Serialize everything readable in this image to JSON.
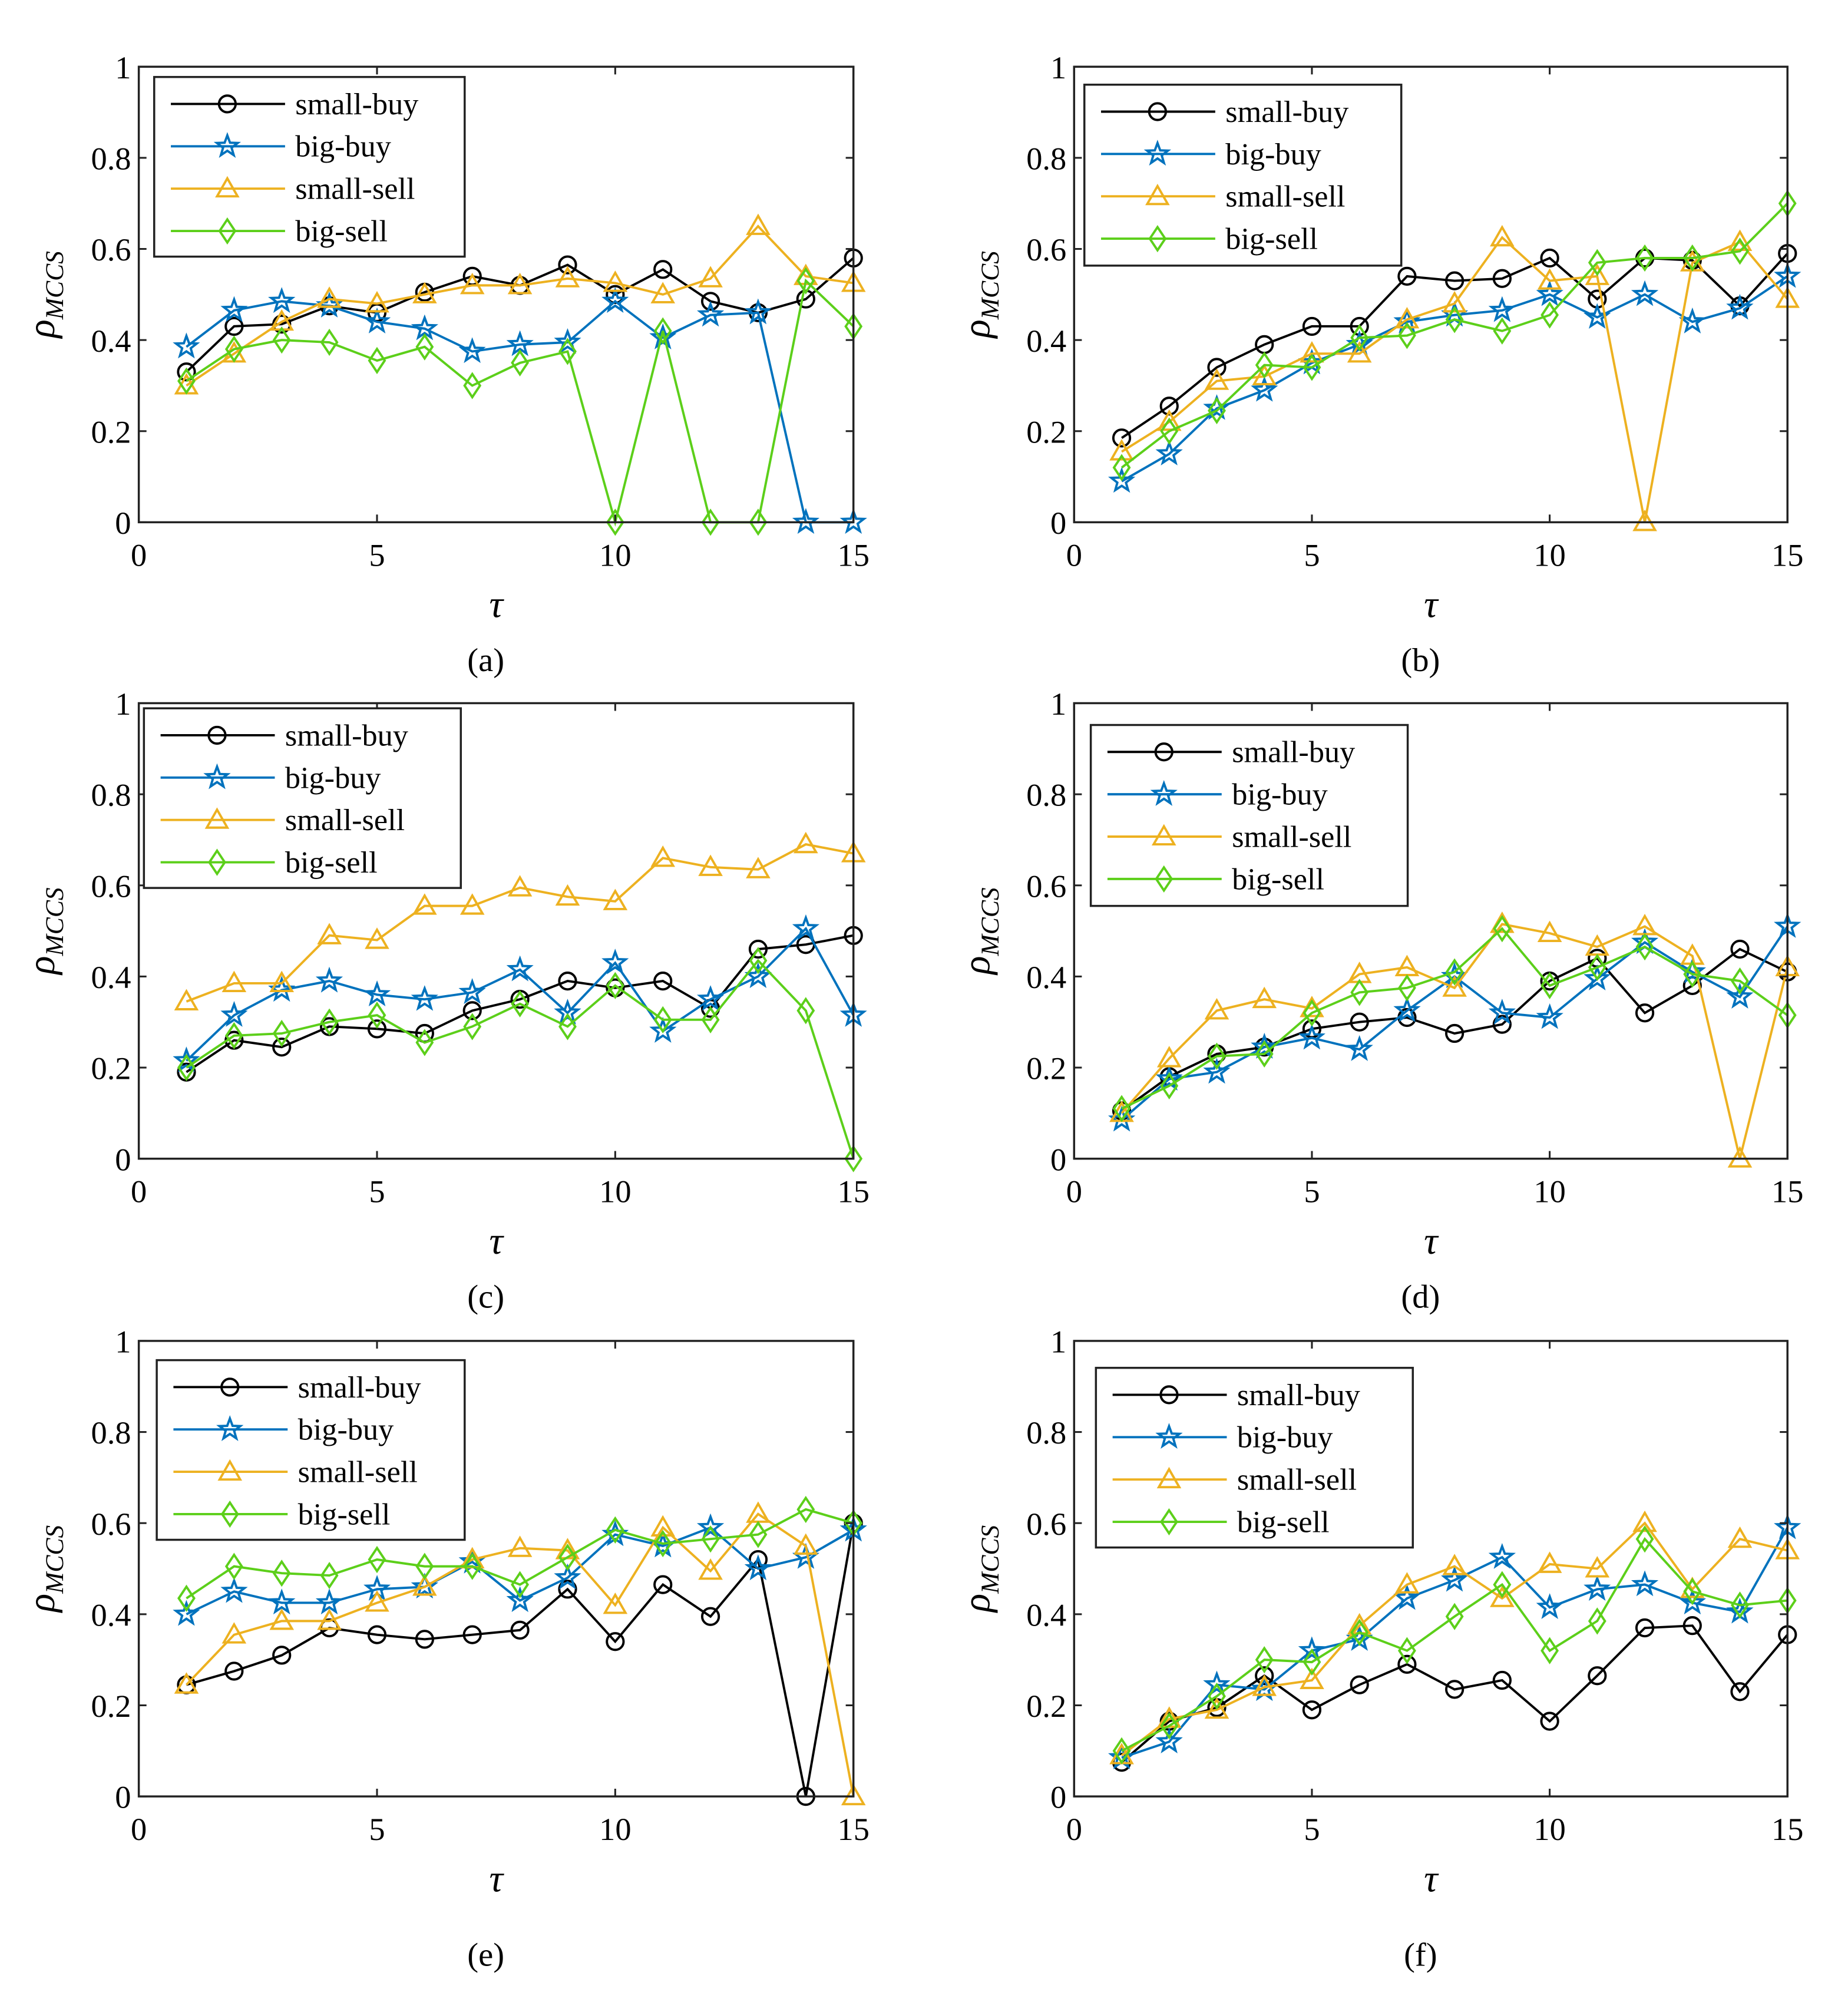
{
  "chart_data": [
    {
      "type": "line",
      "panel_label": "(a)",
      "xlabel": "τ",
      "ylabel": "ρ",
      "ylabel_sub": "MCCS",
      "xlim": [
        0,
        15
      ],
      "ylim": [
        0,
        1
      ],
      "xticks": [
        0,
        5,
        10,
        15
      ],
      "yticks": [
        0,
        0.2,
        0.4,
        0.6,
        0.8,
        1
      ],
      "legend": "top-left",
      "x": [
        1,
        2,
        3,
        4,
        5,
        6,
        7,
        8,
        9,
        10,
        11,
        12,
        13,
        14,
        15
      ],
      "series": [
        {
          "name": "small-buy",
          "color": "#000000",
          "marker": "circle",
          "values": [
            0.33,
            0.43,
            0.435,
            0.475,
            0.46,
            0.505,
            0.54,
            0.52,
            0.565,
            0.5,
            0.555,
            0.485,
            0.46,
            0.49,
            0.58
          ]
        },
        {
          "name": "big-buy",
          "color": "#0072BD",
          "marker": "star",
          "values": [
            0.385,
            0.465,
            0.485,
            0.475,
            0.44,
            0.425,
            0.375,
            0.39,
            0.395,
            0.485,
            0.405,
            0.455,
            0.46,
            0,
            0
          ]
        },
        {
          "name": "small-sell",
          "color": "#EDB120",
          "marker": "triangle",
          "values": [
            0.3,
            0.37,
            0.44,
            0.49,
            0.48,
            0.5,
            0.52,
            0.52,
            0.535,
            0.525,
            0.5,
            0.535,
            0.65,
            0.54,
            0.525
          ]
        },
        {
          "name": "big-sell",
          "color": "#5CCF1A",
          "marker": "diamond",
          "values": [
            0.31,
            0.38,
            0.4,
            0.395,
            0.355,
            0.385,
            0.3,
            0.35,
            0.375,
            0,
            0.42,
            0,
            0,
            0.53,
            0.43
          ]
        }
      ]
    },
    {
      "type": "line",
      "panel_label": "(b)",
      "xlabel": "τ",
      "ylabel": "ρ",
      "ylabel_sub": "MCCS",
      "xlim": [
        0,
        15
      ],
      "ylim": [
        0,
        1
      ],
      "xticks": [
        0,
        5,
        10,
        15
      ],
      "yticks": [
        0,
        0.2,
        0.4,
        0.6,
        0.8,
        1
      ],
      "legend": "top-left",
      "x": [
        1,
        2,
        3,
        4,
        5,
        6,
        7,
        8,
        9,
        10,
        11,
        12,
        13,
        14,
        15
      ],
      "series": [
        {
          "name": "small-buy",
          "color": "#000000",
          "marker": "circle",
          "values": [
            0.185,
            0.255,
            0.34,
            0.39,
            0.43,
            0.43,
            0.54,
            0.53,
            0.535,
            0.58,
            0.49,
            0.58,
            0.575,
            0.475,
            0.59
          ]
        },
        {
          "name": "big-buy",
          "color": "#0072BD",
          "marker": "star",
          "values": [
            0.09,
            0.15,
            0.25,
            0.29,
            0.35,
            0.39,
            0.44,
            0.455,
            0.465,
            0.5,
            0.45,
            0.5,
            0.44,
            0.47,
            0.54
          ]
        },
        {
          "name": "small-sell",
          "color": "#EDB120",
          "marker": "triangle",
          "values": [
            0.155,
            0.22,
            0.31,
            0.32,
            0.37,
            0.37,
            0.445,
            0.48,
            0.625,
            0.53,
            0.54,
            0,
            0.57,
            0.615,
            0.49
          ]
        },
        {
          "name": "big-sell",
          "color": "#5CCF1A",
          "marker": "diamond",
          "values": [
            0.12,
            0.2,
            0.245,
            0.345,
            0.34,
            0.405,
            0.41,
            0.445,
            0.42,
            0.455,
            0.57,
            0.58,
            0.58,
            0.595,
            0.7
          ]
        }
      ]
    },
    {
      "type": "line",
      "panel_label": "(c)",
      "xlabel": "τ",
      "ylabel": "ρ",
      "ylabel_sub": "MCCS",
      "xlim": [
        0,
        15
      ],
      "ylim": [
        0,
        1
      ],
      "xticks": [
        0,
        5,
        10,
        15
      ],
      "yticks": [
        0,
        0.2,
        0.4,
        0.6,
        0.8,
        1
      ],
      "legend": "top-left",
      "x": [
        1,
        2,
        3,
        4,
        5,
        6,
        7,
        8,
        9,
        10,
        11,
        12,
        13,
        14,
        15
      ],
      "series": [
        {
          "name": "small-buy",
          "color": "#000000",
          "marker": "circle",
          "values": [
            0.19,
            0.26,
            0.245,
            0.29,
            0.285,
            0.275,
            0.325,
            0.35,
            0.39,
            0.375,
            0.39,
            0.33,
            0.46,
            0.47,
            0.49
          ]
        },
        {
          "name": "big-buy",
          "color": "#0072BD",
          "marker": "star",
          "values": [
            0.215,
            0.315,
            0.37,
            0.39,
            0.36,
            0.35,
            0.365,
            0.415,
            0.32,
            0.43,
            0.28,
            0.35,
            0.4,
            0.505,
            0.315
          ]
        },
        {
          "name": "small-sell",
          "color": "#EDB120",
          "marker": "triangle",
          "values": [
            0.345,
            0.385,
            0.385,
            0.49,
            0.48,
            0.555,
            0.555,
            0.595,
            0.575,
            0.565,
            0.66,
            0.64,
            0.635,
            0.69,
            0.67
          ]
        },
        {
          "name": "big-sell",
          "color": "#5CCF1A",
          "marker": "diamond",
          "values": [
            0.2,
            0.27,
            0.275,
            0.3,
            0.315,
            0.255,
            0.29,
            0.34,
            0.29,
            0.38,
            0.305,
            0.305,
            0.435,
            0.325,
            0
          ]
        }
      ]
    },
    {
      "type": "line",
      "panel_label": "(d)",
      "xlabel": "τ",
      "ylabel": "ρ",
      "ylabel_sub": "MCCS",
      "xlim": [
        0,
        15
      ],
      "ylim": [
        0,
        1
      ],
      "xticks": [
        0,
        5,
        10,
        15
      ],
      "yticks": [
        0,
        0.2,
        0.4,
        0.6,
        0.8,
        1
      ],
      "legend": "top-left",
      "x": [
        1,
        2,
        3,
        4,
        5,
        6,
        7,
        8,
        9,
        10,
        11,
        12,
        13,
        14,
        15
      ],
      "series": [
        {
          "name": "small-buy",
          "color": "#000000",
          "marker": "circle",
          "values": [
            0.105,
            0.18,
            0.23,
            0.245,
            0.285,
            0.3,
            0.31,
            0.275,
            0.295,
            0.39,
            0.44,
            0.32,
            0.38,
            0.46,
            0.41
          ]
        },
        {
          "name": "big-buy",
          "color": "#0072BD",
          "marker": "star",
          "values": [
            0.085,
            0.175,
            0.19,
            0.245,
            0.265,
            0.24,
            0.325,
            0.4,
            0.32,
            0.31,
            0.395,
            0.475,
            0.41,
            0.355,
            0.51
          ]
        },
        {
          "name": "small-sell",
          "color": "#EDB120",
          "marker": "triangle",
          "values": [
            0.1,
            0.22,
            0.325,
            0.35,
            0.33,
            0.405,
            0.42,
            0.375,
            0.515,
            0.495,
            0.465,
            0.51,
            0.445,
            0,
            0.42
          ]
        },
        {
          "name": "big-sell",
          "color": "#5CCF1A",
          "marker": "diamond",
          "values": [
            0.11,
            0.16,
            0.225,
            0.23,
            0.32,
            0.365,
            0.375,
            0.41,
            0.505,
            0.38,
            0.42,
            0.465,
            0.405,
            0.39,
            0.315
          ]
        }
      ]
    },
    {
      "type": "line",
      "panel_label": "(e)",
      "xlabel": "τ",
      "ylabel": "ρ",
      "ylabel_sub": "MCCS",
      "xlim": [
        0,
        15
      ],
      "ylim": [
        0,
        1
      ],
      "xticks": [
        0,
        5,
        10,
        15
      ],
      "yticks": [
        0,
        0.2,
        0.4,
        0.6,
        0.8,
        1
      ],
      "legend": "top-left",
      "x": [
        1,
        2,
        3,
        4,
        5,
        6,
        7,
        8,
        9,
        10,
        11,
        12,
        13,
        14,
        15
      ],
      "series": [
        {
          "name": "small-buy",
          "color": "#000000",
          "marker": "circle",
          "values": [
            0.245,
            0.275,
            0.31,
            0.37,
            0.355,
            0.345,
            0.355,
            0.365,
            0.455,
            0.34,
            0.465,
            0.395,
            0.52,
            0,
            0.6
          ]
        },
        {
          "name": "big-buy",
          "color": "#0072BD",
          "marker": "star",
          "values": [
            0.4,
            0.45,
            0.425,
            0.425,
            0.455,
            0.46,
            0.515,
            0.43,
            0.48,
            0.575,
            0.55,
            0.59,
            0.5,
            0.525,
            0.585
          ]
        },
        {
          "name": "small-sell",
          "color": "#EDB120",
          "marker": "triangle",
          "values": [
            0.245,
            0.355,
            0.385,
            0.385,
            0.425,
            0.46,
            0.52,
            0.545,
            0.54,
            0.42,
            0.59,
            0.495,
            0.62,
            0.55,
            0
          ]
        },
        {
          "name": "big-sell",
          "color": "#5CCF1A",
          "marker": "diamond",
          "values": [
            0.435,
            0.505,
            0.49,
            0.485,
            0.52,
            0.505,
            0.505,
            0.465,
            0.525,
            0.585,
            0.555,
            0.565,
            0.575,
            0.63,
            0.6
          ]
        }
      ]
    },
    {
      "type": "line",
      "panel_label": "(f)",
      "xlabel": "τ",
      "ylabel": "ρ",
      "ylabel_sub": "MCCS",
      "xlim": [
        0,
        15
      ],
      "ylim": [
        0,
        1
      ],
      "xticks": [
        0,
        5,
        10,
        15
      ],
      "yticks": [
        0,
        0.2,
        0.4,
        0.6,
        0.8,
        1
      ],
      "legend": "top-left",
      "x": [
        1,
        2,
        3,
        4,
        5,
        6,
        7,
        8,
        9,
        10,
        11,
        12,
        13,
        14,
        15
      ],
      "series": [
        {
          "name": "small-buy",
          "color": "#000000",
          "marker": "circle",
          "values": [
            0.075,
            0.165,
            0.195,
            0.265,
            0.19,
            0.245,
            0.29,
            0.235,
            0.255,
            0.165,
            0.265,
            0.37,
            0.375,
            0.23,
            0.355
          ]
        },
        {
          "name": "big-buy",
          "color": "#0072BD",
          "marker": "star",
          "values": [
            0.085,
            0.12,
            0.245,
            0.235,
            0.32,
            0.345,
            0.435,
            0.475,
            0.525,
            0.415,
            0.455,
            0.465,
            0.425,
            0.405,
            0.59
          ]
        },
        {
          "name": "small-sell",
          "color": "#EDB120",
          "marker": "triangle",
          "values": [
            0.09,
            0.17,
            0.19,
            0.24,
            0.255,
            0.375,
            0.465,
            0.505,
            0.435,
            0.51,
            0.5,
            0.6,
            0.455,
            0.565,
            0.54
          ]
        },
        {
          "name": "big-sell",
          "color": "#5CCF1A",
          "marker": "diamond",
          "values": [
            0.1,
            0.155,
            0.22,
            0.3,
            0.295,
            0.36,
            0.32,
            0.395,
            0.465,
            0.32,
            0.385,
            0.565,
            0.45,
            0.42,
            0.43
          ]
        }
      ]
    }
  ]
}
